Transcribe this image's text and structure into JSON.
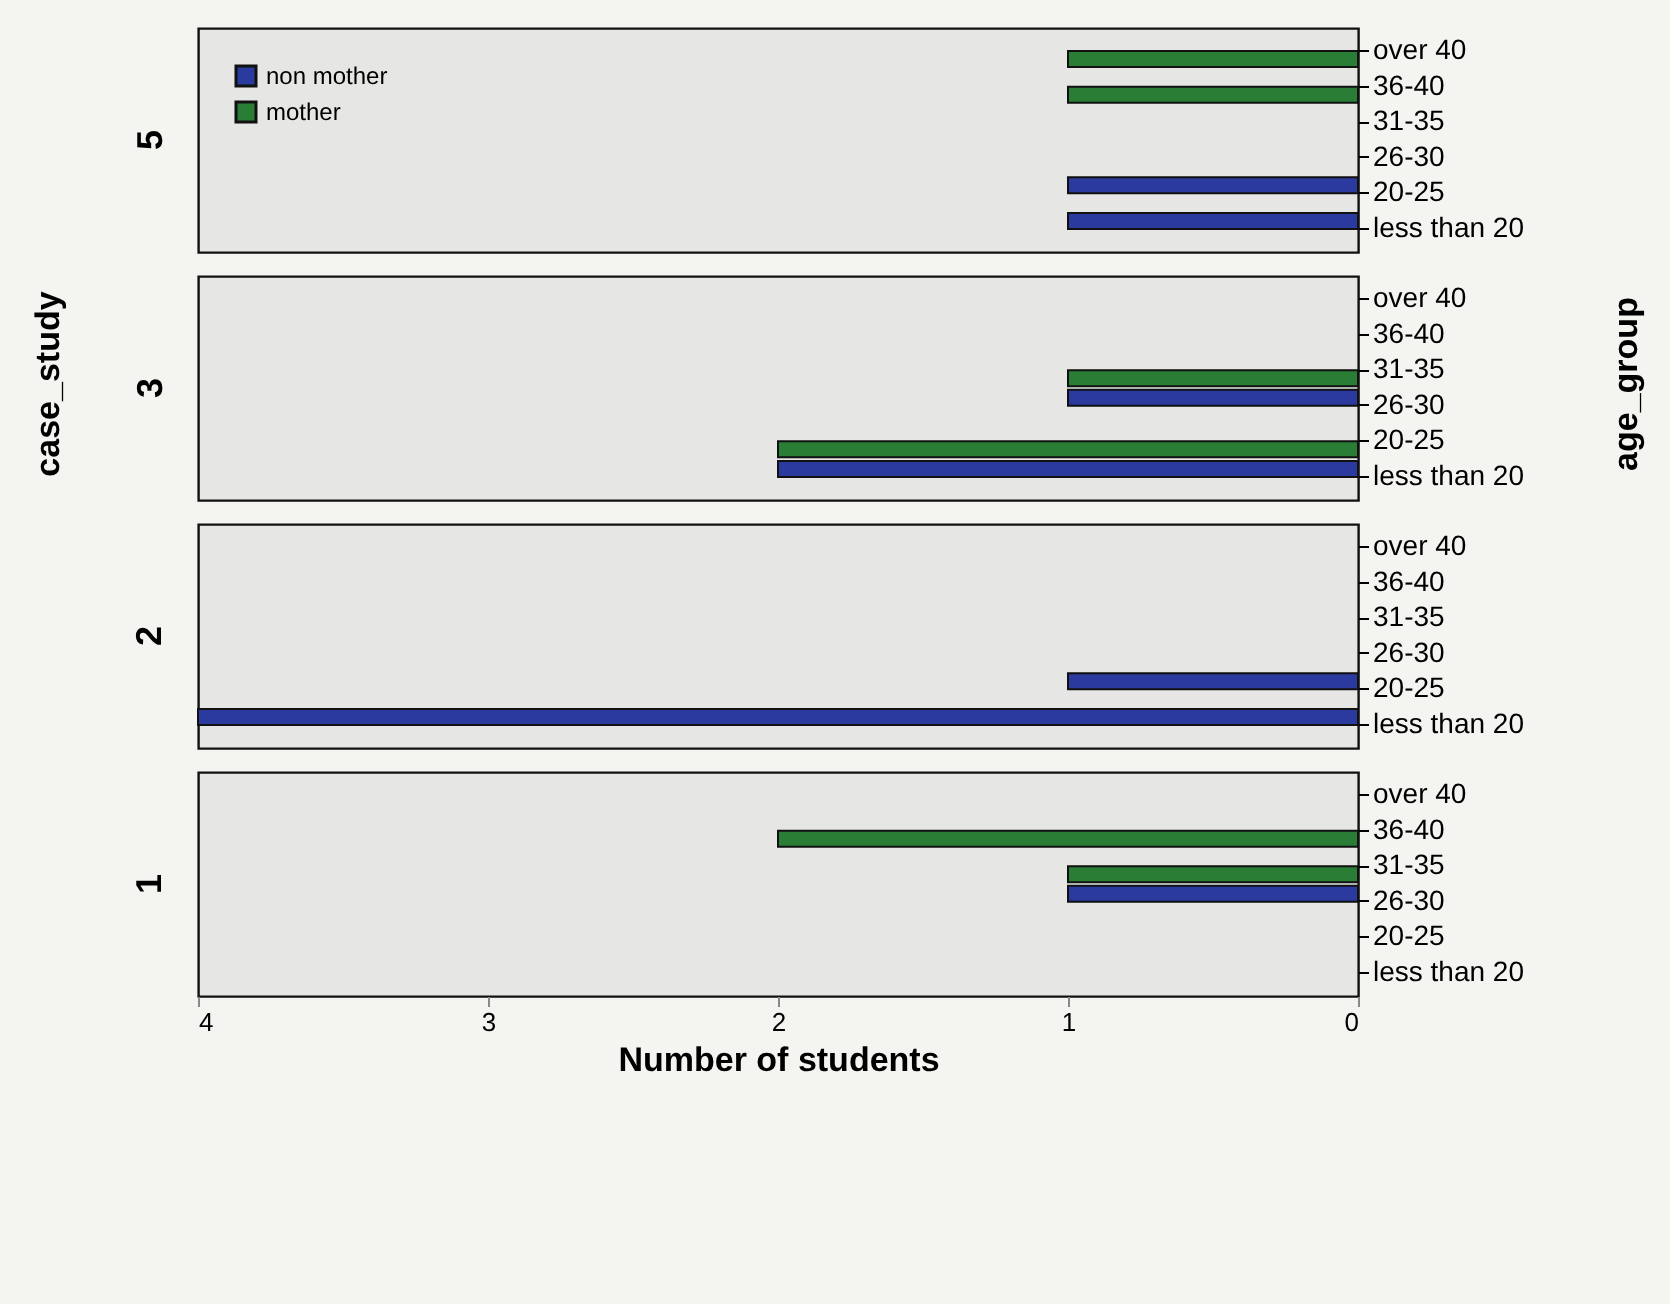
{
  "chart_data": [
    {
      "type": "bar",
      "orientation": "horizontal",
      "title": "5",
      "legend": "top left",
      "tick_labels": "y",
      "categories": [
        "over 40",
        "36-40",
        "31-35",
        "26-30",
        "20-25",
        "less than 20"
      ],
      "xlim": [
        4,
        0
      ],
      "xticks": [
        4,
        3,
        2,
        1,
        0
      ],
      "series": [
        {
          "name": "non mother",
          "color": "#2b3a9e",
          "values": [
            null,
            null,
            null,
            null,
            1,
            1
          ]
        },
        {
          "name": "mother",
          "color": "#2a7d35",
          "values": [
            1,
            1,
            null,
            null,
            null,
            null
          ]
        }
      ]
    },
    {
      "type": "bar",
      "orientation": "horizontal",
      "title": "3",
      "ylabel": "age_group",
      "annotations": [
        "case_study"
      ],
      "tick_labels": "y",
      "categories": [
        "over 40",
        "36-40",
        "31-35",
        "26-30",
        "20-25",
        "less than 20"
      ],
      "xlim": [
        4,
        0
      ],
      "xticks": [
        4,
        3,
        2,
        1,
        0
      ],
      "series": [
        {
          "name": "non mother",
          "color": "#2b3a9e",
          "values": [
            null,
            null,
            null,
            1,
            null,
            2
          ]
        },
        {
          "name": "mother",
          "color": "#2a7d35",
          "values": [
            null,
            null,
            1,
            null,
            2,
            null
          ]
        }
      ]
    },
    {
      "type": "bar",
      "orientation": "horizontal",
      "title": "2",
      "tick_labels": "y",
      "categories": [
        "over 40",
        "36-40",
        "31-35",
        "26-30",
        "20-25",
        "less than 20"
      ],
      "xlim": [
        4,
        0
      ],
      "xticks": [
        4,
        3,
        2,
        1,
        0
      ],
      "series": [
        {
          "name": "non mother",
          "color": "#2b3a9e",
          "values": [
            null,
            null,
            null,
            null,
            1,
            4
          ]
        },
        {
          "name": "mother",
          "color": "#2a7d35",
          "values": [
            null,
            null,
            null,
            null,
            null,
            null
          ]
        }
      ]
    },
    {
      "type": "bar",
      "orientation": "horizontal",
      "title": "1",
      "xlabel": "Number of students",
      "categories": [
        "over 40",
        "36-40",
        "31-35",
        "26-30",
        "20-25",
        "less than 20"
      ],
      "xlim": [
        4,
        0
      ],
      "xticks": [
        4,
        3,
        2,
        1,
        0
      ],
      "series": [
        {
          "name": "non mother",
          "color": "#2b3a9e",
          "values": [
            null,
            null,
            null,
            1,
            null,
            null
          ]
        },
        {
          "name": "mother",
          "color": "#2a7d35",
          "values": [
            null,
            2,
            1,
            null,
            null,
            null
          ]
        }
      ]
    }
  ]
}
